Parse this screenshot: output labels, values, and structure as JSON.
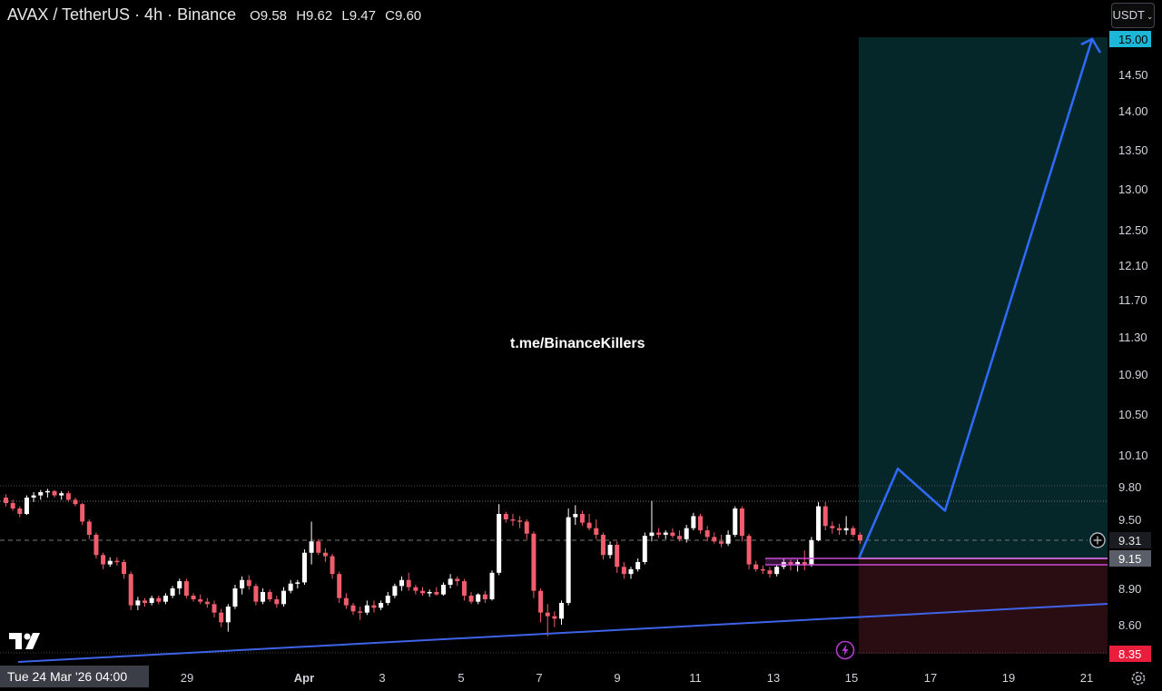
{
  "header": {
    "symbol": "AVAX / TetherUS · 4h · Binance",
    "open": "O9.58",
    "high": "H9.62",
    "low": "L9.47",
    "close": "C9.60"
  },
  "currency_button": "USDT",
  "watermark": "t.me/BinanceKillers",
  "date_badge": "Tue 24 Mar '26   04:00",
  "chart_data": {
    "type": "candlestick",
    "price_axis": {
      "ticks": [
        "15.00",
        "14.50",
        "14.00",
        "13.50",
        "13.00",
        "12.50",
        "12.10",
        "11.70",
        "11.30",
        "10.90",
        "10.50",
        "10.10",
        "9.80",
        "9.50",
        "9.31",
        "9.15",
        "8.90",
        "8.60",
        "8.35"
      ],
      "current_price": "9.31",
      "entry_price": "9.15",
      "target_price": "15.00",
      "stop_price": "8.35"
    },
    "time_axis": {
      "labels": [
        "29",
        "Apr",
        "3",
        "5",
        "7",
        "9",
        "11",
        "13",
        "15",
        "17",
        "19",
        "21"
      ],
      "crosshair_date": "Tue 24 Mar '26   04:00"
    },
    "colors": {
      "up": "#ffffff",
      "down": "#f05d6c",
      "projection": "#2f6bff",
      "profit_zone": "#06272a",
      "loss_zone": "#2a0d12",
      "target_badge": "#1eb6d6",
      "stop_badge": "#e91e3c"
    },
    "candles": [
      [
        9.7,
        9.73,
        9.62,
        9.65
      ],
      [
        9.65,
        9.68,
        9.58,
        9.6
      ],
      [
        9.6,
        9.62,
        9.52,
        9.55
      ],
      [
        9.55,
        9.72,
        9.54,
        9.7
      ],
      [
        9.7,
        9.75,
        9.66,
        9.72
      ],
      [
        9.72,
        9.77,
        9.68,
        9.75
      ],
      [
        9.75,
        9.78,
        9.7,
        9.76
      ],
      [
        9.76,
        9.77,
        9.7,
        9.72
      ],
      [
        9.72,
        9.76,
        9.68,
        9.74
      ],
      [
        9.74,
        9.76,
        9.66,
        9.68
      ],
      [
        9.68,
        9.7,
        9.62,
        9.64
      ],
      [
        9.64,
        9.65,
        9.45,
        9.48
      ],
      [
        9.48,
        9.5,
        9.32,
        9.36
      ],
      [
        9.36,
        9.38,
        9.15,
        9.18
      ],
      [
        9.18,
        9.2,
        9.06,
        9.1
      ],
      [
        9.1,
        9.16,
        9.08,
        9.13
      ],
      [
        9.13,
        9.16,
        9.09,
        9.12
      ],
      [
        9.12,
        9.14,
        8.98,
        9.02
      ],
      [
        9.02,
        9.04,
        8.72,
        8.76
      ],
      [
        8.76,
        8.83,
        8.72,
        8.8
      ],
      [
        8.8,
        8.82,
        8.75,
        8.78
      ],
      [
        8.78,
        8.84,
        8.76,
        8.82
      ],
      [
        8.82,
        8.84,
        8.77,
        8.79
      ],
      [
        8.79,
        8.86,
        8.77,
        8.84
      ],
      [
        8.84,
        8.92,
        8.82,
        8.9
      ],
      [
        8.9,
        8.98,
        8.85,
        8.96
      ],
      [
        8.96,
        8.98,
        8.82,
        8.84
      ],
      [
        8.84,
        8.86,
        8.79,
        8.81
      ],
      [
        8.81,
        8.85,
        8.77,
        8.79
      ],
      [
        8.79,
        8.82,
        8.74,
        8.77
      ],
      [
        8.77,
        8.8,
        8.66,
        8.7
      ],
      [
        8.7,
        8.73,
        8.58,
        8.62
      ],
      [
        8.62,
        8.77,
        8.54,
        8.75
      ],
      [
        8.75,
        8.93,
        8.73,
        8.9
      ],
      [
        8.9,
        9.0,
        8.85,
        8.97
      ],
      [
        8.97,
        9.01,
        8.89,
        8.92
      ],
      [
        8.92,
        8.94,
        8.76,
        8.79
      ],
      [
        8.79,
        8.9,
        8.77,
        8.87
      ],
      [
        8.87,
        8.89,
        8.79,
        8.81
      ],
      [
        8.81,
        8.84,
        8.74,
        8.77
      ],
      [
        8.77,
        8.91,
        8.75,
        8.88
      ],
      [
        8.88,
        8.97,
        8.86,
        8.94
      ],
      [
        8.94,
        8.97,
        8.9,
        8.95
      ],
      [
        8.95,
        9.23,
        8.93,
        9.2
      ],
      [
        9.2,
        9.48,
        9.1,
        9.3
      ],
      [
        9.3,
        9.32,
        9.18,
        9.2
      ],
      [
        9.2,
        9.24,
        9.12,
        9.17
      ],
      [
        9.17,
        9.19,
        8.98,
        9.02
      ],
      [
        9.02,
        9.04,
        8.78,
        8.82
      ],
      [
        8.82,
        8.86,
        8.73,
        8.76
      ],
      [
        8.76,
        8.78,
        8.68,
        8.71
      ],
      [
        8.71,
        8.75,
        8.64,
        8.7
      ],
      [
        8.7,
        8.8,
        8.68,
        8.76
      ],
      [
        8.76,
        8.8,
        8.7,
        8.74
      ],
      [
        8.74,
        8.8,
        8.72,
        8.78
      ],
      [
        8.78,
        8.87,
        8.76,
        8.84
      ],
      [
        8.84,
        8.94,
        8.82,
        8.92
      ],
      [
        8.92,
        9.0,
        8.88,
        8.97
      ],
      [
        8.97,
        9.03,
        8.88,
        8.91
      ],
      [
        8.91,
        8.93,
        8.85,
        8.88
      ],
      [
        8.88,
        8.91,
        8.84,
        8.86
      ],
      [
        8.86,
        8.89,
        8.83,
        8.87
      ],
      [
        8.87,
        8.91,
        8.84,
        8.85
      ],
      [
        8.85,
        8.95,
        8.84,
        8.93
      ],
      [
        8.93,
        9.02,
        8.9,
        8.98
      ],
      [
        8.98,
        9.0,
        8.92,
        8.96
      ],
      [
        8.96,
        8.98,
        8.8,
        8.84
      ],
      [
        8.84,
        8.87,
        8.77,
        8.79
      ],
      [
        8.79,
        8.86,
        8.77,
        8.85
      ],
      [
        8.85,
        8.88,
        8.78,
        8.81
      ],
      [
        8.81,
        9.05,
        8.8,
        9.03
      ],
      [
        9.03,
        9.64,
        9.01,
        9.55
      ],
      [
        9.55,
        9.57,
        9.47,
        9.5
      ],
      [
        9.5,
        9.55,
        9.44,
        9.49
      ],
      [
        9.49,
        9.53,
        9.42,
        9.48
      ],
      [
        9.48,
        9.5,
        9.32,
        9.37
      ],
      [
        9.37,
        9.39,
        8.82,
        8.88
      ],
      [
        8.88,
        8.9,
        8.62,
        8.7
      ],
      [
        8.7,
        8.77,
        8.5,
        8.67
      ],
      [
        8.67,
        8.71,
        8.58,
        8.65
      ],
      [
        8.65,
        8.8,
        8.6,
        8.78
      ],
      [
        8.78,
        9.6,
        8.76,
        9.52
      ],
      [
        9.52,
        9.63,
        9.45,
        9.55
      ],
      [
        9.55,
        9.58,
        9.44,
        9.47
      ],
      [
        9.47,
        9.55,
        9.4,
        9.42
      ],
      [
        9.42,
        9.5,
        9.32,
        9.36
      ],
      [
        9.36,
        9.38,
        9.14,
        9.18
      ],
      [
        9.18,
        9.3,
        9.15,
        9.27
      ],
      [
        9.27,
        9.3,
        9.03,
        9.08
      ],
      [
        9.08,
        9.12,
        8.98,
        9.02
      ],
      [
        9.02,
        9.08,
        8.98,
        9.06
      ],
      [
        9.06,
        9.15,
        9.04,
        9.12
      ],
      [
        9.12,
        9.38,
        9.1,
        9.35
      ],
      [
        9.35,
        9.67,
        9.3,
        9.38
      ],
      [
        9.38,
        9.42,
        9.33,
        9.36
      ],
      [
        9.36,
        9.4,
        9.32,
        9.38
      ],
      [
        9.38,
        9.42,
        9.33,
        9.35
      ],
      [
        9.35,
        9.4,
        9.3,
        9.32
      ],
      [
        9.32,
        9.45,
        9.29,
        9.42
      ],
      [
        9.42,
        9.56,
        9.4,
        9.53
      ],
      [
        9.53,
        9.55,
        9.37,
        9.4
      ],
      [
        9.4,
        9.44,
        9.3,
        9.34
      ],
      [
        9.34,
        9.38,
        9.28,
        9.3
      ],
      [
        9.3,
        9.36,
        9.25,
        9.28
      ],
      [
        9.28,
        9.4,
        9.26,
        9.36
      ],
      [
        9.36,
        9.62,
        9.34,
        9.6
      ],
      [
        9.6,
        9.62,
        9.3,
        9.35
      ],
      [
        9.35,
        9.37,
        9.06,
        9.1
      ],
      [
        9.1,
        9.13,
        9.04,
        9.06
      ],
      [
        9.06,
        9.09,
        9.02,
        9.05
      ],
      [
        9.05,
        9.08,
        8.99,
        9.02
      ],
      [
        9.02,
        9.1,
        9.0,
        9.08
      ],
      [
        9.08,
        9.15,
        9.06,
        9.12
      ],
      [
        9.12,
        9.14,
        9.05,
        9.1
      ],
      [
        9.1,
        9.14,
        9.04,
        9.12
      ],
      [
        9.12,
        9.22,
        9.05,
        9.1
      ],
      [
        9.1,
        9.34,
        9.08,
        9.31
      ],
      [
        9.31,
        9.66,
        9.3,
        9.62
      ],
      [
        9.62,
        9.66,
        9.4,
        9.44
      ],
      [
        9.44,
        9.48,
        9.37,
        9.42
      ],
      [
        9.42,
        9.46,
        9.36,
        9.4
      ],
      [
        9.4,
        9.53,
        9.36,
        9.42
      ],
      [
        9.42,
        9.44,
        9.34,
        9.36
      ],
      [
        9.36,
        9.38,
        9.28,
        9.31
      ]
    ],
    "projection_path": [
      [
        9.15
      ],
      [
        9.97
      ],
      [
        9.58
      ],
      [
        15.0
      ]
    ]
  }
}
